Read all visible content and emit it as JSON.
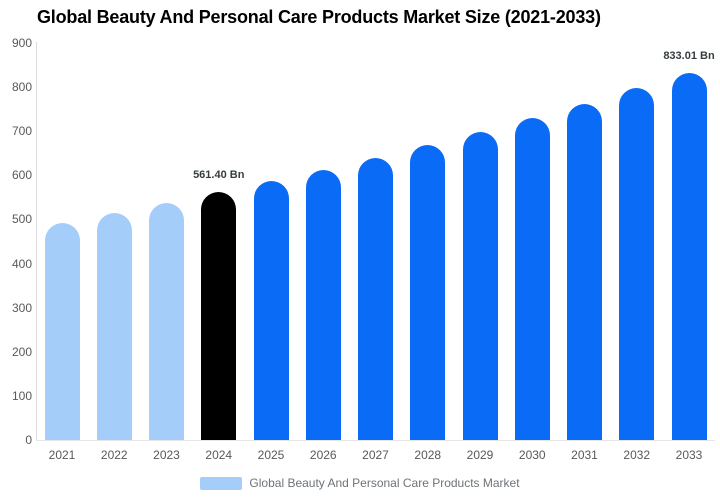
{
  "chart_data": {
    "type": "bar",
    "title": "Global Beauty And Personal Care Products Market Size (2021-2033)",
    "categories": [
      "2021",
      "2022",
      "2023",
      "2024",
      "2025",
      "2026",
      "2027",
      "2028",
      "2029",
      "2030",
      "2031",
      "2032",
      "2033"
    ],
    "values": [
      492.0,
      514.1,
      537.2,
      561.4,
      586.5,
      612.8,
      640.2,
      668.9,
      698.8,
      730.1,
      762.8,
      797.0,
      833.01
    ],
    "unit": "Bn",
    "point_labels": [
      "",
      "",
      "",
      "561.40 Bn",
      "",
      "",
      "",
      "",
      "",
      "",
      "",
      "",
      "833.01 Bn"
    ],
    "bar_colors": [
      "#a5cdfa",
      "#a5cdfa",
      "#a5cdfa",
      "#000000",
      "#0a6bf7",
      "#0a6bf7",
      "#0a6bf7",
      "#0a6bf7",
      "#0a6bf7",
      "#0a6bf7",
      "#0a6bf7",
      "#0a6bf7",
      "#0a6bf7"
    ],
    "xlabel": "",
    "ylabel": "",
    "ylim": [
      0,
      900
    ],
    "yticks": [
      900,
      800,
      700,
      600,
      500,
      400,
      300,
      200,
      100,
      0
    ],
    "grid": false,
    "legend": {
      "label": "Global Beauty And Personal Care Products Market",
      "swatch_color": "#a5cdfa",
      "position": "bottom"
    },
    "colors": {
      "historical_bar": "#a5cdfa",
      "base_year_bar": "#000000",
      "forecast_bar": "#0a6bf7",
      "axis_label": "#58595c",
      "data_label": "#373d3f",
      "axis_line": "#dcdcdc",
      "title": "#000000"
    }
  }
}
